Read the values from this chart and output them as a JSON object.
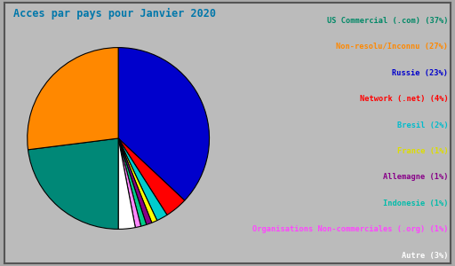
{
  "title": "Acces par pays pour Janvier 2020",
  "title_color": "#0077aa",
  "background_color": "#aaaaaa",
  "inner_background": "#bbbbbb",
  "slices": [
    {
      "label": "US Commercial (.com)",
      "pct": 37,
      "color": "#0000cc"
    },
    {
      "label": "Network (.net)",
      "pct": 4,
      "color": "#ff0000"
    },
    {
      "label": "Bresil",
      "pct": 2,
      "color": "#00cccc"
    },
    {
      "label": "France",
      "pct": 1,
      "color": "#ffff00"
    },
    {
      "label": "Allemagne",
      "pct": 1,
      "color": "#880088"
    },
    {
      "label": "Indonesie",
      "pct": 1,
      "color": "#00cc88"
    },
    {
      "label": "Organisations Non-commerciales (.org)",
      "pct": 1,
      "color": "#ff88ff"
    },
    {
      "label": "Autre",
      "pct": 3,
      "color": "#ffffff"
    },
    {
      "label": "Russie",
      "pct": 23,
      "color": "#008877"
    },
    {
      "label": "Non-resolu/Inconnu",
      "pct": 27,
      "color": "#ff8800"
    }
  ],
  "legend_entries": [
    {
      "text": "US Commercial (.com) (37%)",
      "color": "#008866"
    },
    {
      "text": "Non-resolu/Inconnu (27%)",
      "color": "#ff8800"
    },
    {
      "text": "Russie (23%)",
      "color": "#0000cc"
    },
    {
      "text": "Network (.net) (4%)",
      "color": "#ff0000"
    },
    {
      "text": "Bresil (2%)",
      "color": "#00bbcc"
    },
    {
      "text": "France (1%)",
      "color": "#dddd00"
    },
    {
      "text": "Allemagne (1%)",
      "color": "#880088"
    },
    {
      "text": "Indonesie (1%)",
      "color": "#00bbaa"
    },
    {
      "text": "Organisations Non-commerciales (.org) (1%)",
      "color": "#ff44ff"
    },
    {
      "text": "Autre (3%)",
      "color": "#ffffff"
    }
  ]
}
